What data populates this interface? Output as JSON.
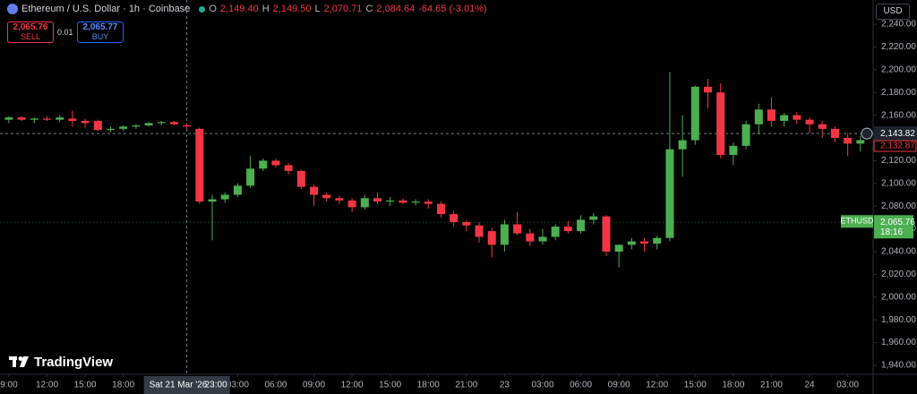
{
  "header": {
    "symbol": "Ethereum / U.S. Dollar · 1h · Coinbase",
    "ohlc": [
      {
        "key": "O",
        "value": "2,149.40"
      },
      {
        "key": "H",
        "value": "2,149.50"
      },
      {
        "key": "L",
        "value": "2,070.71"
      },
      {
        "key": "C",
        "value": "2,084.64"
      }
    ],
    "change": "-64.65 (-3.01%)",
    "sell": {
      "price": "2,065.76",
      "label": "SELL"
    },
    "spread": "0.01",
    "buy": {
      "price": "2,065.77",
      "label": "BUY"
    },
    "currency": "USD",
    "logo": "TradingView"
  },
  "chart_data": {
    "type": "candlestick",
    "up_color": "#4caf50",
    "down_color": "#f23645",
    "x": [
      0,
      1,
      2,
      3,
      4,
      5,
      6,
      7,
      8,
      9,
      10,
      11,
      12,
      13,
      14,
      15,
      16,
      17,
      18,
      19,
      20,
      21,
      22,
      23,
      24,
      25,
      26,
      27,
      28,
      29,
      30,
      31,
      32,
      33,
      34,
      35,
      36,
      37,
      38,
      39,
      40,
      41,
      42,
      43,
      44,
      45,
      46,
      47,
      48,
      49,
      50,
      51,
      52,
      53,
      54,
      55,
      56,
      57,
      58,
      59,
      60,
      61,
      62,
      63,
      64,
      65,
      66,
      67
    ],
    "open": [
      2156,
      2158,
      2156,
      2157,
      2156,
      2157,
      2155,
      2155,
      2147,
      2148,
      2150,
      2151,
      2153,
      2154,
      2151,
      2148,
      2084,
      2086,
      2090,
      2098,
      2113,
      2120,
      2116,
      2111,
      2097,
      2090,
      2087,
      2085,
      2079,
      2087,
      2084,
      2085,
      2083,
      2084,
      2082,
      2073,
      2066,
      2063,
      2058,
      2046,
      2064,
      2056,
      2049,
      2053,
      2062,
      2058,
      2068,
      2071,
      2040,
      2046,
      2049,
      2047,
      2052,
      2130,
      2138,
      2185,
      2180,
      2125,
      2133,
      2152,
      2165,
      2155,
      2160,
      2156,
      2152,
      2148,
      2140,
      2135
    ],
    "high": [
      2159,
      2159,
      2158,
      2159,
      2160,
      2164,
      2157,
      2156,
      2150,
      2151,
      2152,
      2154,
      2155,
      2155,
      2153,
      2149,
      2090,
      2092,
      2100,
      2124,
      2122,
      2122,
      2118,
      2112,
      2099,
      2092,
      2089,
      2087,
      2090,
      2092,
      2088,
      2087,
      2086,
      2086,
      2084,
      2076,
      2068,
      2066,
      2061,
      2068,
      2075,
      2060,
      2060,
      2064,
      2067,
      2072,
      2074,
      2072,
      2046,
      2052,
      2052,
      2054,
      2198,
      2160,
      2186,
      2192,
      2188,
      2136,
      2155,
      2170,
      2176,
      2162,
      2163,
      2158,
      2155,
      2150,
      2144,
      2142
    ],
    "low": [
      2153,
      2155,
      2153,
      2155,
      2154,
      2150,
      2149,
      2146,
      2145,
      2146,
      2148,
      2150,
      2151,
      2151,
      2148,
      2082,
      2050,
      2083,
      2088,
      2096,
      2111,
      2114,
      2108,
      2095,
      2080,
      2084,
      2082,
      2075,
      2077,
      2082,
      2080,
      2082,
      2081,
      2078,
      2070,
      2062,
      2058,
      2048,
      2035,
      2040,
      2054,
      2045,
      2046,
      2050,
      2056,
      2056,
      2064,
      2036,
      2026,
      2042,
      2040,
      2042,
      2049,
      2106,
      2134,
      2166,
      2122,
      2116,
      2130,
      2143,
      2150,
      2150,
      2152,
      2144,
      2140,
      2136,
      2124,
      2128
    ],
    "close": [
      2158,
      2156,
      2157,
      2156,
      2158,
      2155,
      2153,
      2147,
      2148,
      2150,
      2151,
      2153,
      2154,
      2152,
      2150,
      2084,
      2086,
      2090,
      2098,
      2113,
      2120,
      2116,
      2111,
      2097,
      2090,
      2087,
      2085,
      2079,
      2087,
      2084,
      2085,
      2083,
      2084,
      2082,
      2073,
      2066,
      2063,
      2053,
      2046,
      2064,
      2056,
      2049,
      2053,
      2062,
      2058,
      2068,
      2071,
      2040,
      2046,
      2049,
      2047,
      2052,
      2130,
      2138,
      2185,
      2180,
      2125,
      2133,
      2152,
      2165,
      2155,
      2160,
      2156,
      2152,
      2148,
      2140,
      2135,
      2138
    ],
    "xlim": [
      -0.7,
      68
    ],
    "ylim": [
      1932.1,
      2261.3
    ],
    "xticks": [
      {
        "value": 0,
        "label": "9:00"
      },
      {
        "value": 3,
        "label": "12:00"
      },
      {
        "value": 6,
        "label": "15:00"
      },
      {
        "value": 9,
        "label": "18:00"
      },
      {
        "value": 18,
        "label": "03:00"
      },
      {
        "value": 21,
        "label": "06:00"
      },
      {
        "value": 24,
        "label": "09:00"
      },
      {
        "value": 27,
        "label": "12:00"
      },
      {
        "value": 30,
        "label": "15:00"
      },
      {
        "value": 33,
        "label": "18:00"
      },
      {
        "value": 36,
        "label": "21:00"
      },
      {
        "value": 39,
        "label": "23"
      },
      {
        "value": 42,
        "label": "03:00"
      },
      {
        "value": 45,
        "label": "06:00"
      },
      {
        "value": 48,
        "label": "09:00"
      },
      {
        "value": 51,
        "label": "12:00"
      },
      {
        "value": 54,
        "label": "15:00"
      },
      {
        "value": 57,
        "label": "18:00"
      },
      {
        "value": 60,
        "label": "21:00"
      },
      {
        "value": 63,
        "label": "24"
      },
      {
        "value": 66,
        "label": "03:00"
      }
    ],
    "yticks": [
      {
        "value": 1940,
        "label": "1,940.00"
      },
      {
        "value": 1960,
        "label": "1,960.00"
      },
      {
        "value": 1980,
        "label": "1,980.00"
      },
      {
        "value": 2000,
        "label": "2,000.00"
      },
      {
        "value": 2020,
        "label": "2,020.00"
      },
      {
        "value": 2040,
        "label": "2,040.00"
      },
      {
        "value": 2060,
        "label": "2,060.00"
      },
      {
        "value": 2080,
        "label": "2,080.00"
      },
      {
        "value": 2100,
        "label": "2,100.00"
      },
      {
        "value": 2120,
        "label": "2,120.00"
      },
      {
        "value": 2140,
        "label": "2,140.00"
      },
      {
        "value": 2160,
        "label": "2,160.00"
      },
      {
        "value": 2180,
        "label": "2,180.00"
      },
      {
        "value": 2200,
        "label": "2,200.00"
      },
      {
        "value": 2220,
        "label": "2,220.00"
      },
      {
        "value": 2240,
        "label": "2,240.00"
      }
    ],
    "crosshair": {
      "x": 14,
      "y": {
        "value": 2143.82,
        "label": "2,143.82"
      },
      "date": "Sat 21 Mar '26",
      "time": "23:00"
    },
    "price_tags": [
      {
        "value": 2132.87,
        "label": "2,132.87"
      }
    ],
    "last_price": {
      "value": 2065.76,
      "label": "2,065.76",
      "symbol": "ETHUSD",
      "countdown": "18:16"
    }
  }
}
